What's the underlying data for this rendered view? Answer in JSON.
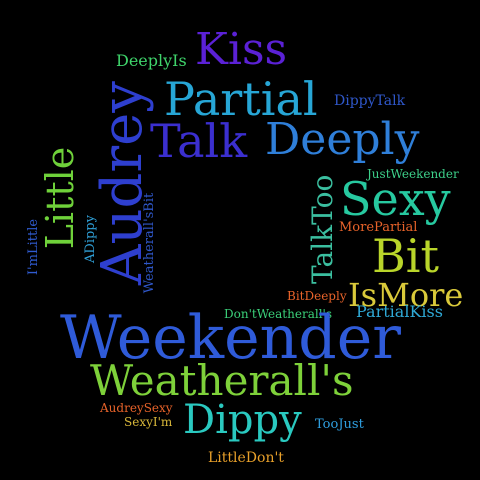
{
  "background": "#000000",
  "words": [
    {
      "text": "Kiss",
      "color": "#5b21d6"
    },
    {
      "text": "DeeplyIs",
      "color": "#3fd46b"
    },
    {
      "text": "Partial",
      "color": "#27a6d6"
    },
    {
      "text": "DippyTalk",
      "color": "#2f57c9"
    },
    {
      "text": "Audrey",
      "color": "#2e3fcf"
    },
    {
      "text": "Talk",
      "color": "#3b2fcf"
    },
    {
      "text": "Deeply",
      "color": "#2f7fd9"
    },
    {
      "text": "Little",
      "color": "#6fd13a"
    },
    {
      "text": "JustWeekender",
      "color": "#3dd08a"
    },
    {
      "text": "Sexy",
      "color": "#27c9a0"
    },
    {
      "text": "Weatherall'sBit",
      "color": "#2f57c9"
    },
    {
      "text": "ADippy",
      "color": "#2f9fd6"
    },
    {
      "text": "I'mLittle",
      "color": "#2f5bd0"
    },
    {
      "text": "TalkToo",
      "color": "#3bbfa0"
    },
    {
      "text": "MorePartial",
      "color": "#e8632a"
    },
    {
      "text": "Bit",
      "color": "#b9d52a"
    },
    {
      "text": "BitDeeply",
      "color": "#e8632a"
    },
    {
      "text": "IsMore",
      "color": "#d9c93a"
    },
    {
      "text": "Don'tWeatherall's",
      "color": "#3bd07a"
    },
    {
      "text": "PartialKiss",
      "color": "#2fa9d6"
    },
    {
      "text": "Weekender",
      "color": "#2f5bd9"
    },
    {
      "text": "Weatherall's",
      "color": "#7ed13a"
    },
    {
      "text": "AudreySexy",
      "color": "#e8632a"
    },
    {
      "text": "Dippy",
      "color": "#2ac9c0"
    },
    {
      "text": "SexyI'm",
      "color": "#d9b83a"
    },
    {
      "text": "TooJust",
      "color": "#2f9fe0"
    },
    {
      "text": "LittleDon't",
      "color": "#e8a02a"
    }
  ]
}
